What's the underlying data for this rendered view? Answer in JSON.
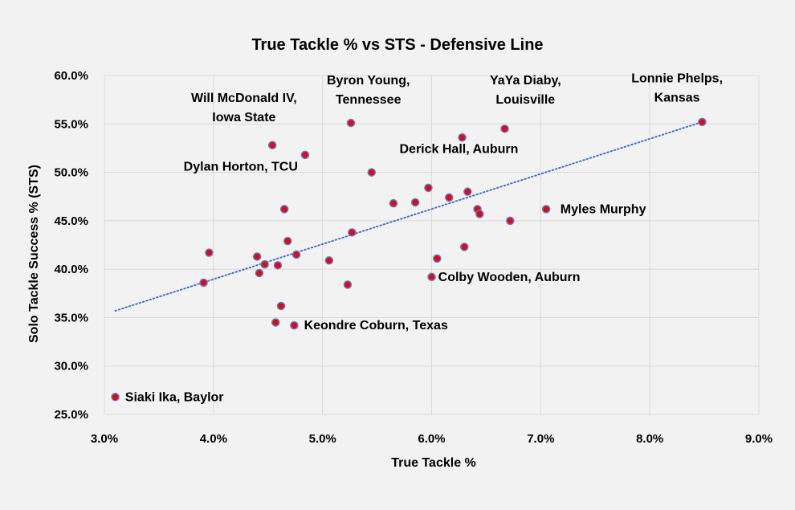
{
  "chart_data": {
    "type": "scatter",
    "title": "True Tackle % vs STS - Defensive Line",
    "xlabel": "True Tackle %",
    "ylabel": "Solo Tackle Success % (STS)",
    "xlim": [
      3.0,
      9.0
    ],
    "ylim": [
      25.0,
      60.0
    ],
    "x_ticks": [
      3,
      4,
      5,
      6,
      7,
      8,
      9
    ],
    "y_ticks": [
      25,
      30,
      35,
      40,
      45,
      50,
      55,
      60
    ],
    "x_tick_labels": [
      "3.0%",
      "4.0%",
      "5.0%",
      "6.0%",
      "7.0%",
      "8.0%",
      "9.0%"
    ],
    "y_tick_labels": [
      "25.0%",
      "30.0%",
      "35.0%",
      "40.0%",
      "45.0%",
      "50.0%",
      "55.0%",
      "60.0%"
    ],
    "grid": true,
    "marker_fill": "#e30613",
    "marker_edge": "#5b7fc4",
    "trendline": {
      "type": "linear",
      "style": "dotted",
      "color": "#4472c4",
      "x": [
        3.1,
        8.48
      ],
      "y": [
        35.7,
        55.2
      ]
    },
    "points": [
      {
        "x": 3.1,
        "y": 26.8
      },
      {
        "x": 3.91,
        "y": 38.6
      },
      {
        "x": 3.96,
        "y": 41.7
      },
      {
        "x": 4.4,
        "y": 41.3
      },
      {
        "x": 4.42,
        "y": 39.6
      },
      {
        "x": 4.47,
        "y": 40.5
      },
      {
        "x": 4.54,
        "y": 52.8
      },
      {
        "x": 4.57,
        "y": 34.5
      },
      {
        "x": 4.59,
        "y": 40.4
      },
      {
        "x": 4.62,
        "y": 36.2
      },
      {
        "x": 4.65,
        "y": 46.2
      },
      {
        "x": 4.68,
        "y": 42.9
      },
      {
        "x": 4.74,
        "y": 34.2
      },
      {
        "x": 4.76,
        "y": 41.5
      },
      {
        "x": 4.84,
        "y": 51.8
      },
      {
        "x": 5.06,
        "y": 40.9
      },
      {
        "x": 5.23,
        "y": 38.4
      },
      {
        "x": 5.26,
        "y": 55.1
      },
      {
        "x": 5.27,
        "y": 43.8
      },
      {
        "x": 5.45,
        "y": 50.0
      },
      {
        "x": 5.65,
        "y": 46.8
      },
      {
        "x": 5.85,
        "y": 46.9
      },
      {
        "x": 5.97,
        "y": 48.4
      },
      {
        "x": 6.0,
        "y": 39.2
      },
      {
        "x": 6.05,
        "y": 41.1
      },
      {
        "x": 6.16,
        "y": 47.4
      },
      {
        "x": 6.28,
        "y": 53.6
      },
      {
        "x": 6.3,
        "y": 42.3
      },
      {
        "x": 6.33,
        "y": 48.0
      },
      {
        "x": 6.42,
        "y": 46.2
      },
      {
        "x": 6.44,
        "y": 45.7
      },
      {
        "x": 6.67,
        "y": 54.5
      },
      {
        "x": 6.72,
        "y": 45.0
      },
      {
        "x": 7.05,
        "y": 46.2
      },
      {
        "x": 8.48,
        "y": 55.2
      }
    ],
    "annotations": [
      {
        "lines": [
          "Siaki Ika, Baylor"
        ],
        "anchor": "start",
        "x": 3.19,
        "y": 26.8
      },
      {
        "lines": [
          "Keondre Coburn, Texas"
        ],
        "anchor": "start",
        "x": 4.83,
        "y": 34.2
      },
      {
        "lines": [
          "Colby Wooden, Auburn"
        ],
        "anchor": "start",
        "x": 6.06,
        "y": 39.2
      },
      {
        "lines": [
          "Myles Murphy"
        ],
        "anchor": "start",
        "x": 7.18,
        "y": 46.2
      },
      {
        "lines": [
          "Dylan Horton, TCU"
        ],
        "anchor": "middle",
        "x": 4.25,
        "y": 50.6
      },
      {
        "lines": [
          "Derick Hall, Auburn"
        ],
        "anchor": "middle",
        "x": 6.25,
        "y": 52.4
      },
      {
        "lines": [
          "Will McDonald IV,",
          "Iowa State"
        ],
        "anchor": "middle",
        "x": 4.28,
        "y": 56.7
      },
      {
        "lines": [
          "Byron Young,",
          "Tennessee"
        ],
        "anchor": "middle",
        "x": 5.42,
        "y": 58.5
      },
      {
        "lines": [
          "YaYa Diaby,",
          "Louisville"
        ],
        "anchor": "middle",
        "x": 6.86,
        "y": 58.5
      },
      {
        "lines": [
          "Lonnie Phelps,",
          "Kansas"
        ],
        "anchor": "middle",
        "x": 8.25,
        "y": 58.7
      }
    ]
  }
}
